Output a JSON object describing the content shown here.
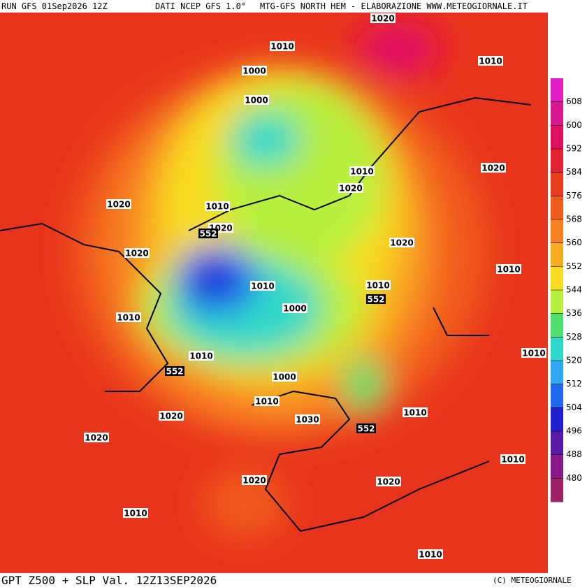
{
  "header": {
    "run": "RUN GFS 01Sep2026 12Z",
    "source": "DATI NCEP GFS 1.0°",
    "credit": "MTG-GFS NORTH HEM - ELABORAZIONE WWW.METEOGIORNALE.IT"
  },
  "footer": {
    "title": "GPT Z500 + SLP Val. 12Z13SEP2026",
    "copyright": "(C) METEOGIORNALE"
  },
  "legend": {
    "labels": [
      "608",
      "600",
      "592",
      "584",
      "576",
      "568",
      "560",
      "552",
      "544",
      "536",
      "528",
      "520",
      "512",
      "504",
      "496",
      "488",
      "480"
    ],
    "colors": [
      "#e41cc4",
      "#d8188e",
      "#e01060",
      "#e42034",
      "#e83c1c",
      "#f05a1c",
      "#f88020",
      "#f8ac20",
      "#f8dc20",
      "#b8f040",
      "#50e070",
      "#30d8c8",
      "#30a8f0",
      "#2068f0",
      "#2020d0",
      "#5818a8",
      "#881888",
      "#a02068"
    ]
  },
  "isobars": [
    "1020",
    "1010",
    "1010",
    "1000",
    "1000",
    "1020",
    "1010",
    "1020",
    "1020",
    "1010",
    "1020",
    "552",
    "1020",
    "1020",
    "1010",
    "1010",
    "1010",
    "552",
    "1000",
    "1010",
    "1010",
    "1010",
    "552",
    "1000",
    "1010",
    "1010",
    "1020",
    "1030",
    "552",
    "1020",
    "1010",
    "1020",
    "1020",
    "1010",
    "1010"
  ]
}
